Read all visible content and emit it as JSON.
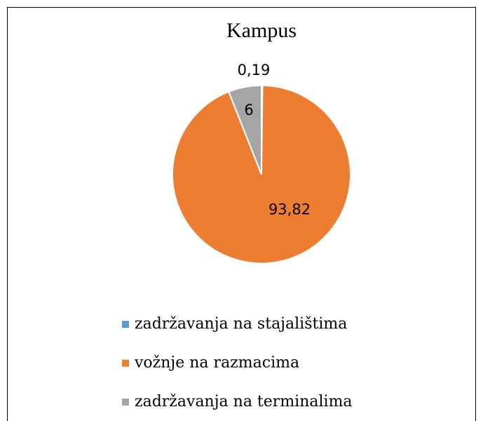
{
  "chart_data": {
    "type": "pie",
    "title": "Kampus",
    "categories": [
      "zadržavanja na stajalištima",
      "vožnje na razmacima",
      "zadržavanja na terminalima"
    ],
    "values": [
      0.19,
      93.82,
      6
    ],
    "value_labels": [
      "0,19",
      "93,82",
      "6"
    ],
    "colors": [
      "#5b9bd5",
      "#ed7d31",
      "#a5a5a5"
    ],
    "legend": "bottom"
  }
}
